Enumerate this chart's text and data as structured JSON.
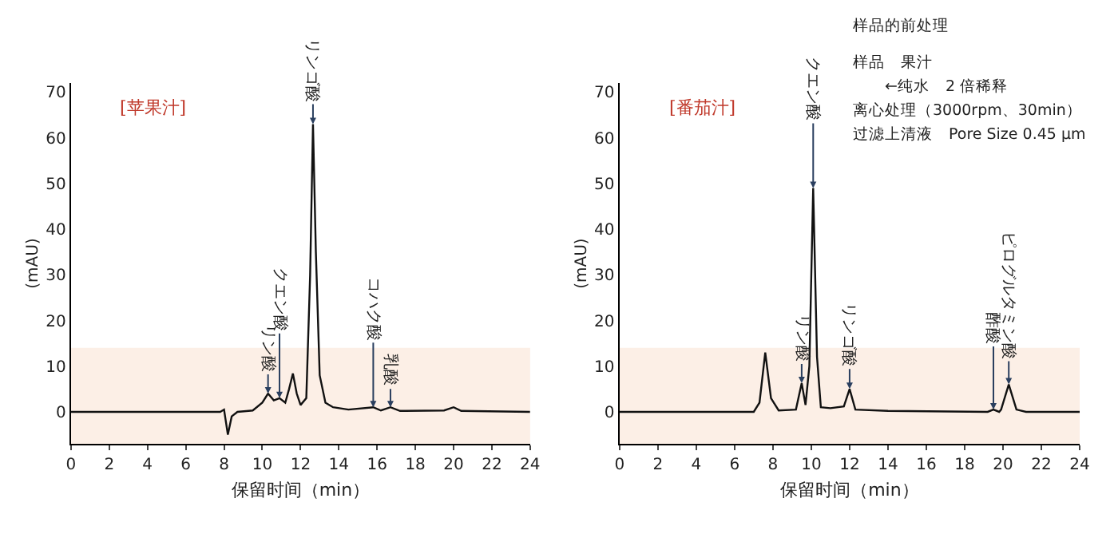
{
  "chart_data": [
    {
      "type": "line",
      "title": "[苹果汁]",
      "xlabel": "保留时间（min）",
      "ylabel": "(mAU)",
      "xlim": [
        0,
        24
      ],
      "xticks": [
        0,
        2,
        4,
        6,
        8,
        10,
        12,
        14,
        16,
        18,
        20,
        22,
        24
      ],
      "ylim": [
        -7,
        72
      ],
      "yticks": [
        0,
        10,
        20,
        30,
        40,
        50,
        60,
        70
      ],
      "marker": "none",
      "line_style": "solid",
      "bands": [
        {
          "axis": "y",
          "from": -7,
          "to": 14,
          "color": "#fcefe6"
        }
      ],
      "series": [
        {
          "color": "#111111",
          "x": [
            0,
            7.8,
            8.0,
            8.2,
            8.4,
            8.7,
            9.5,
            10.0,
            10.3,
            10.6,
            10.9,
            11.2,
            11.4,
            11.6,
            11.8,
            12.0,
            12.3,
            12.5,
            12.65,
            12.8,
            13.0,
            13.3,
            13.7,
            14.5,
            15.8,
            16.2,
            16.7,
            17.2,
            19.5,
            20.0,
            20.4,
            24
          ],
          "values": [
            0,
            0,
            0.5,
            -5,
            -1,
            0,
            0.3,
            2,
            4,
            2.5,
            3,
            2,
            5,
            8.4,
            4,
            1.5,
            3,
            30,
            63,
            35,
            8,
            2,
            1,
            0.5,
            1,
            0.3,
            1,
            0.2,
            0.3,
            1,
            0.2,
            0
          ]
        }
      ],
      "annotations": [
        {
          "text": "リン酸",
          "x": 10.3,
          "y": 4
        },
        {
          "text": "クエン酸",
          "x": 10.9,
          "y": 3
        },
        {
          "text": "リンゴ酸",
          "x": 12.65,
          "y": 63
        },
        {
          "text": "コハク酸",
          "x": 15.8,
          "y": 1
        },
        {
          "text": "乳酸",
          "x": 16.7,
          "y": 1
        }
      ]
    },
    {
      "type": "line",
      "title": "[番茄汁]",
      "xlabel": "保留时间（min）",
      "ylabel": "(mAU)",
      "xlim": [
        0,
        24
      ],
      "xticks": [
        0,
        2,
        4,
        6,
        8,
        10,
        12,
        14,
        16,
        18,
        20,
        22,
        24
      ],
      "ylim": [
        -7,
        72
      ],
      "yticks": [
        0,
        10,
        20,
        30,
        40,
        50,
        60,
        70
      ],
      "marker": "none",
      "line_style": "solid",
      "bands": [
        {
          "axis": "y",
          "from": -7,
          "to": 14,
          "color": "#fcefe6"
        }
      ],
      "series": [
        {
          "color": "#111111",
          "x": [
            0,
            7.0,
            7.3,
            7.6,
            7.9,
            8.3,
            9.2,
            9.5,
            9.7,
            9.9,
            10.1,
            10.3,
            10.5,
            11.0,
            11.7,
            12.0,
            12.3,
            14,
            19.2,
            19.5,
            19.8,
            19.9,
            20.3,
            20.7,
            21.2,
            24
          ],
          "values": [
            0,
            0,
            2,
            13,
            3,
            0.3,
            0.5,
            6.3,
            1.5,
            10,
            49,
            12,
            1,
            0.8,
            1.2,
            5,
            0.5,
            0.2,
            0,
            0.5,
            0,
            0.5,
            6,
            0.5,
            0,
            0
          ]
        }
      ],
      "annotations": [
        {
          "text": "リン酸",
          "x": 9.5,
          "y": 6.3
        },
        {
          "text": "クエン酸",
          "x": 10.1,
          "y": 49
        },
        {
          "text": "リンゴ酸",
          "x": 12.0,
          "y": 5
        },
        {
          "text": "酢酸",
          "x": 19.5,
          "y": 0.5
        },
        {
          "text": "ピログルタミン酸",
          "x": 20.3,
          "y": 6
        },
        "样品的前处理",
        "样品　果汁",
        "　　←纯水　2 倍稀释",
        "离心处理（3000rpm、30min）",
        "过滤上清液　Pore Size 0.45 μm"
      ]
    }
  ]
}
